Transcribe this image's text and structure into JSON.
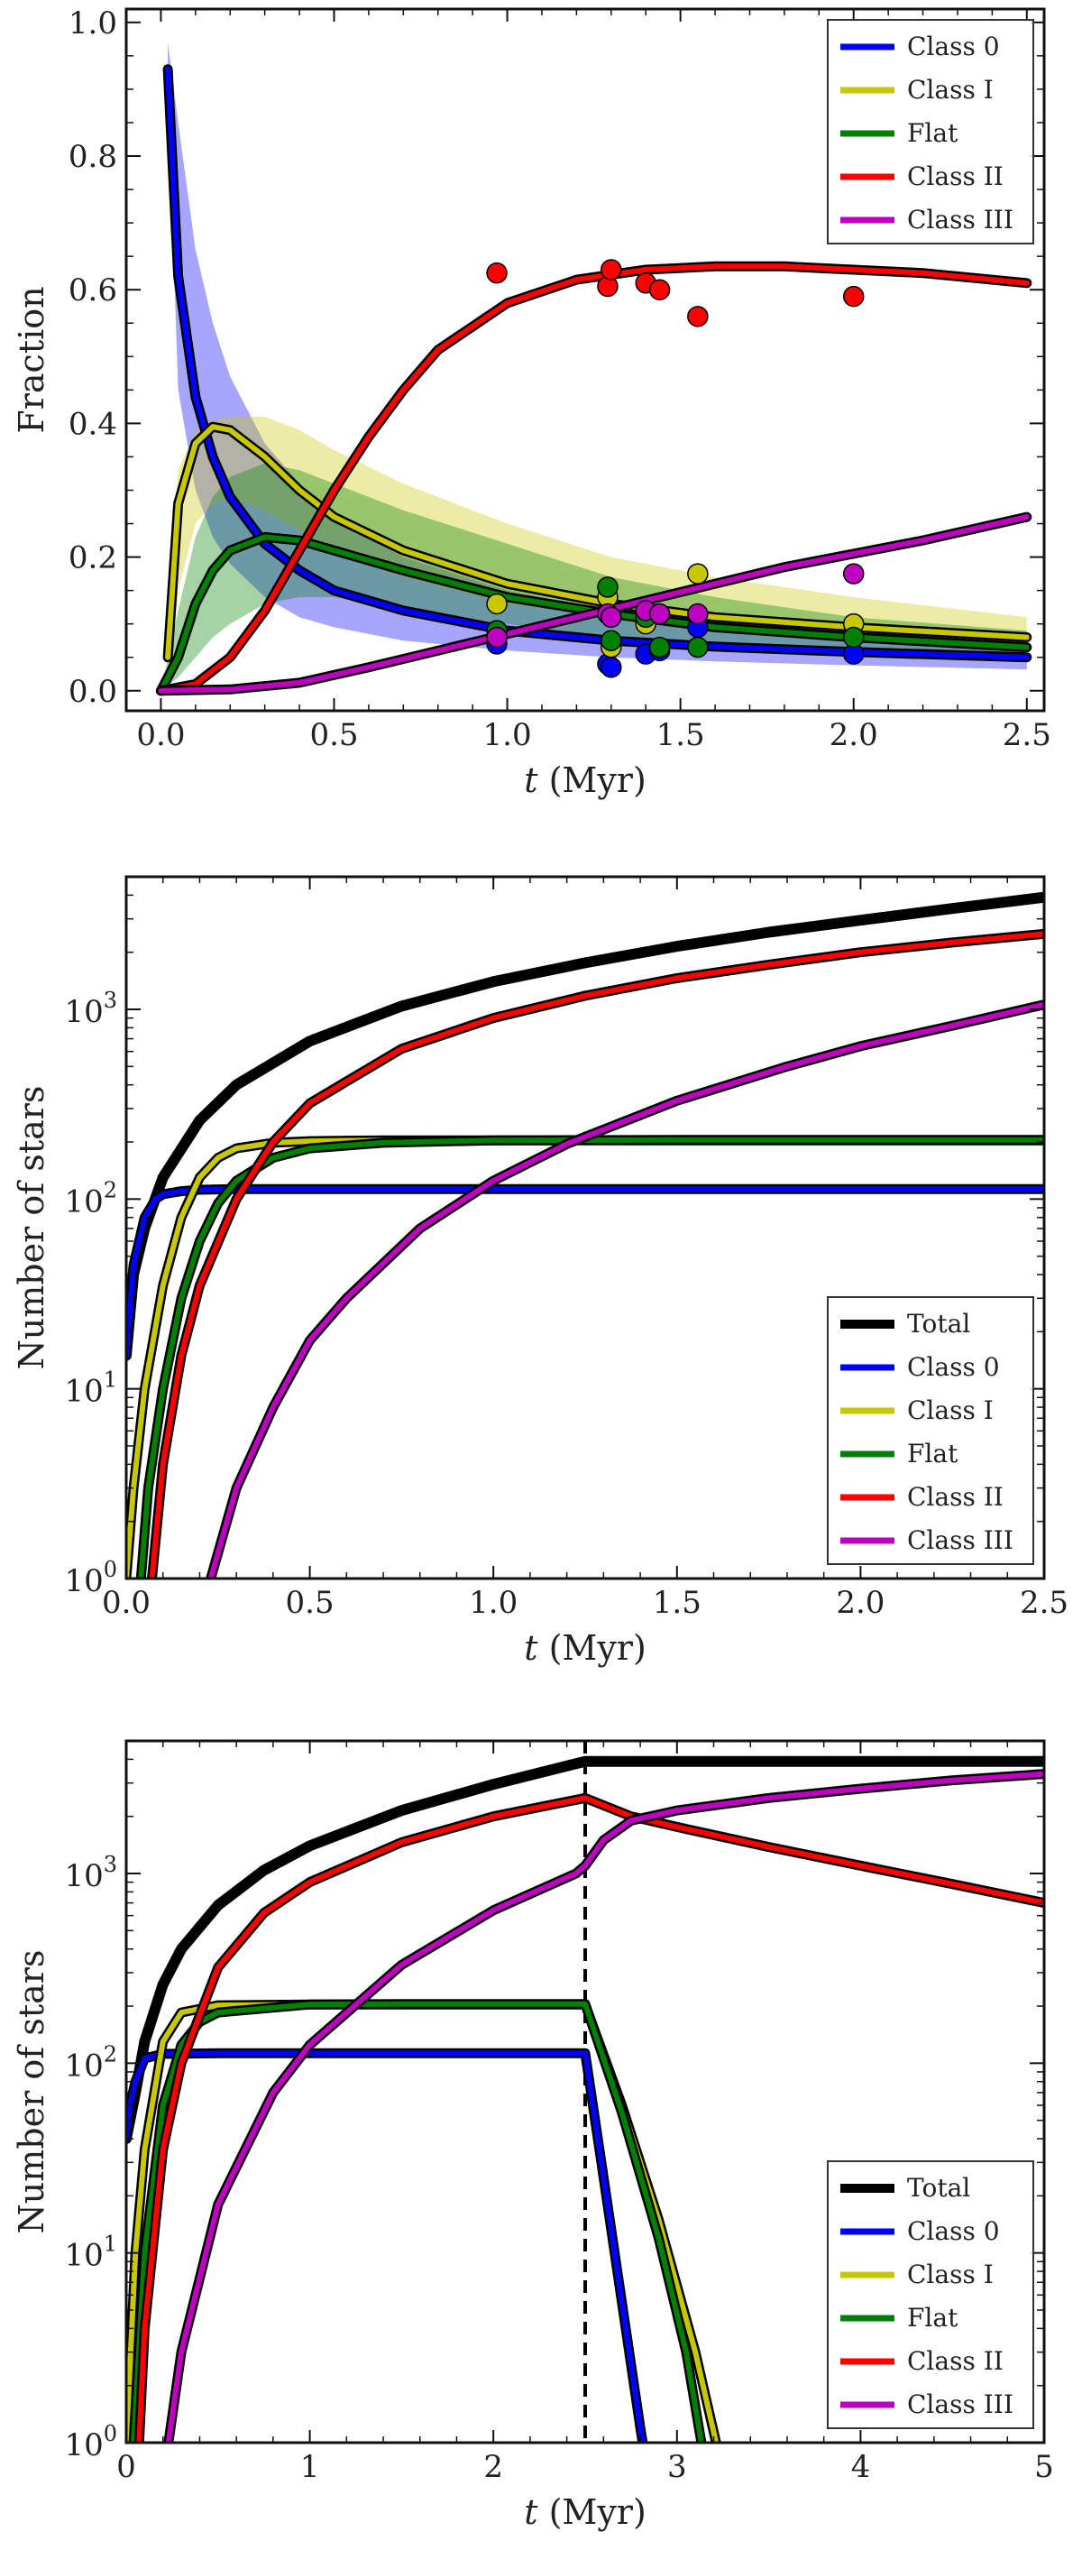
{
  "figure": {
    "panels": 3
  },
  "chart_data": [
    {
      "type": "line",
      "xlabel_italic": "t",
      "xlabel_rest": " (Myr)",
      "ylabel": "Fraction",
      "xlim": [
        -0.1,
        2.55
      ],
      "ylim": [
        -0.03,
        1.02
      ],
      "xticks": [
        0.0,
        0.5,
        1.0,
        1.5,
        2.0,
        2.5
      ],
      "xtick_labels": [
        "0.0",
        "0.5",
        "1.0",
        "1.5",
        "2.0",
        "2.5"
      ],
      "yticks": [
        0.0,
        0.2,
        0.4,
        0.6,
        0.8,
        1.0
      ],
      "ytick_labels": [
        "0.0",
        "0.2",
        "0.4",
        "0.6",
        "0.8",
        "1.0"
      ],
      "yscale": "linear",
      "legend_position": "top-right",
      "legend": [
        "Class 0",
        "Class I",
        "Flat",
        "Class II",
        "Class III"
      ],
      "series": [
        {
          "name": "Class 0",
          "color": "#0000ff",
          "x": [
            0.02,
            0.05,
            0.1,
            0.15,
            0.2,
            0.3,
            0.4,
            0.5,
            0.7,
            1.0,
            1.3,
            1.6,
            2.0,
            2.5
          ],
          "y": [
            0.93,
            0.62,
            0.44,
            0.35,
            0.29,
            0.22,
            0.18,
            0.15,
            0.12,
            0.09,
            0.075,
            0.066,
            0.058,
            0.05
          ],
          "band_upper": [
            0.97,
            0.85,
            0.66,
            0.55,
            0.47,
            0.37,
            0.31,
            0.26,
            0.2,
            0.15,
            0.12,
            0.1,
            0.085,
            0.07
          ],
          "band_lower": [
            0.9,
            0.45,
            0.3,
            0.23,
            0.19,
            0.14,
            0.11,
            0.095,
            0.075,
            0.06,
            0.05,
            0.044,
            0.038,
            0.032
          ]
        },
        {
          "name": "Class I",
          "color": "#c8c800",
          "x": [
            0.02,
            0.05,
            0.1,
            0.15,
            0.2,
            0.3,
            0.4,
            0.5,
            0.7,
            1.0,
            1.3,
            1.6,
            2.0,
            2.5
          ],
          "y": [
            0.05,
            0.28,
            0.37,
            0.395,
            0.39,
            0.35,
            0.3,
            0.26,
            0.21,
            0.16,
            0.13,
            0.11,
            0.095,
            0.08
          ],
          "band_upper": [
            0.1,
            0.33,
            0.39,
            0.405,
            0.41,
            0.41,
            0.39,
            0.36,
            0.31,
            0.25,
            0.2,
            0.17,
            0.14,
            0.11
          ],
          "band_lower": [
            0.0,
            0.15,
            0.25,
            0.28,
            0.29,
            0.27,
            0.24,
            0.21,
            0.17,
            0.13,
            0.11,
            0.09,
            0.075,
            0.06
          ]
        },
        {
          "name": "Flat",
          "color": "#008000",
          "x": [
            0.0,
            0.05,
            0.1,
            0.15,
            0.2,
            0.3,
            0.4,
            0.5,
            0.7,
            1.0,
            1.3,
            1.6,
            2.0,
            2.5
          ],
          "y": [
            0.0,
            0.05,
            0.13,
            0.18,
            0.21,
            0.23,
            0.225,
            0.21,
            0.18,
            0.14,
            0.115,
            0.095,
            0.08,
            0.065
          ],
          "band_upper": [
            0.0,
            0.12,
            0.23,
            0.29,
            0.32,
            0.34,
            0.33,
            0.31,
            0.27,
            0.22,
            0.17,
            0.14,
            0.11,
            0.09
          ],
          "band_lower": [
            0.0,
            0.02,
            0.05,
            0.08,
            0.1,
            0.13,
            0.14,
            0.14,
            0.12,
            0.1,
            0.08,
            0.065,
            0.055,
            0.045
          ]
        },
        {
          "name": "Class II",
          "color": "#ff0000",
          "x": [
            0.0,
            0.1,
            0.2,
            0.3,
            0.4,
            0.5,
            0.6,
            0.7,
            0.8,
            1.0,
            1.2,
            1.4,
            1.6,
            1.8,
            2.0,
            2.2,
            2.5
          ],
          "y": [
            0.0,
            0.01,
            0.05,
            0.12,
            0.21,
            0.3,
            0.38,
            0.45,
            0.51,
            0.58,
            0.615,
            0.63,
            0.635,
            0.635,
            0.63,
            0.625,
            0.61
          ]
        },
        {
          "name": "Class III",
          "color": "#c000c0",
          "x": [
            0.0,
            0.2,
            0.4,
            0.6,
            0.8,
            1.0,
            1.2,
            1.4,
            1.6,
            1.8,
            2.0,
            2.2,
            2.5
          ],
          "y": [
            0.0,
            0.002,
            0.012,
            0.035,
            0.06,
            0.085,
            0.11,
            0.135,
            0.16,
            0.185,
            0.205,
            0.225,
            0.26
          ]
        }
      ],
      "observations": [
        {
          "x": 0.97,
          "Class 0": 0.07,
          "Class I": 0.13,
          "Flat": 0.09,
          "Class II": 0.625,
          "Class III": 0.08
        },
        {
          "x": 1.29,
          "Class 0": 0.04,
          "Class I": 0.14,
          "Flat": 0.155,
          "Class II": 0.605,
          "Class III": 0.115
        },
        {
          "x": 1.3,
          "Class 0": 0.035,
          "Class I": 0.065,
          "Flat": 0.075,
          "Class II": 0.63,
          "Class III": 0.11
        },
        {
          "x": 1.4,
          "Class 0": 0.055,
          "Class I": 0.1,
          "Flat": 0.11,
          "Class II": 0.61,
          "Class III": 0.12
        },
        {
          "x": 1.44,
          "Class 0": 0.06,
          "Class I": 0.115,
          "Flat": 0.065,
          "Class II": 0.6,
          "Class III": 0.115
        },
        {
          "x": 1.55,
          "Class 0": 0.095,
          "Class I": 0.175,
          "Flat": 0.065,
          "Class II": 0.56,
          "Class III": 0.115
        },
        {
          "x": 2.0,
          "Class 0": 0.055,
          "Class I": 0.1,
          "Flat": 0.08,
          "Class II": 0.59,
          "Class III": 0.175
        }
      ]
    },
    {
      "type": "line",
      "xlabel_italic": "t",
      "xlabel_rest": " (Myr)",
      "ylabel": "Number of stars",
      "xlim": [
        0.0,
        2.5
      ],
      "ylim": [
        1,
        5000
      ],
      "yscale": "log",
      "xticks": [
        0.0,
        0.5,
        1.0,
        1.5,
        2.0,
        2.5
      ],
      "xtick_labels": [
        "0.0",
        "0.5",
        "1.0",
        "1.5",
        "2.0",
        "2.5"
      ],
      "yticks": [
        1,
        10,
        100,
        1000
      ],
      "ytick_base": "10",
      "ytick_exps": [
        "0",
        "1",
        "2",
        "3"
      ],
      "legend_position": "bottom-right",
      "legend": [
        "Total",
        "Class 0",
        "Class I",
        "Flat",
        "Class II",
        "Class III"
      ],
      "series": [
        {
          "name": "Total",
          "color": "#000000",
          "x": [
            0.0,
            0.02,
            0.05,
            0.1,
            0.2,
            0.3,
            0.5,
            0.75,
            1.0,
            1.25,
            1.5,
            1.75,
            2.0,
            2.25,
            2.5
          ],
          "y": [
            15,
            40,
            70,
            130,
            260,
            400,
            680,
            1040,
            1400,
            1760,
            2150,
            2550,
            2950,
            3400,
            3900
          ]
        },
        {
          "name": "Class 0",
          "color": "#0000ff",
          "x": [
            0.0,
            0.02,
            0.05,
            0.08,
            0.1,
            0.15,
            0.2,
            0.3,
            0.5,
            1.0,
            1.5,
            2.0,
            2.5
          ],
          "y": [
            15,
            45,
            80,
            100,
            106,
            110,
            112,
            113,
            113,
            113,
            113,
            113,
            113
          ]
        },
        {
          "name": "Class I",
          "color": "#c8c800",
          "x": [
            0.0,
            0.02,
            0.05,
            0.1,
            0.15,
            0.2,
            0.25,
            0.3,
            0.4,
            0.5,
            0.7,
            1.0,
            1.5,
            2.0,
            2.5
          ],
          "y": [
            1,
            3,
            10,
            35,
            80,
            130,
            165,
            185,
            198,
            202,
            204,
            204,
            204,
            204,
            204
          ]
        },
        {
          "name": "Flat",
          "color": "#008000",
          "x": [
            0.04,
            0.06,
            0.1,
            0.15,
            0.2,
            0.25,
            0.3,
            0.4,
            0.5,
            0.7,
            1.0,
            1.5,
            2.0,
            2.5
          ],
          "y": [
            1,
            3,
            10,
            30,
            60,
            95,
            125,
            165,
            185,
            198,
            204,
            205,
            205,
            205
          ]
        },
        {
          "name": "Class II",
          "color": "#ff0000",
          "x": [
            0.07,
            0.1,
            0.15,
            0.2,
            0.3,
            0.4,
            0.5,
            0.75,
            1.0,
            1.25,
            1.5,
            1.75,
            2.0,
            2.25,
            2.5
          ],
          "y": [
            1,
            4,
            15,
            35,
            100,
            200,
            320,
            620,
            900,
            1180,
            1460,
            1720,
            2000,
            2250,
            2500
          ]
        },
        {
          "name": "Class III",
          "color": "#c000c0",
          "x": [
            0.23,
            0.3,
            0.4,
            0.5,
            0.6,
            0.8,
            1.0,
            1.2,
            1.5,
            1.8,
            2.0,
            2.25,
            2.5
          ],
          "y": [
            1,
            3,
            8,
            18,
            30,
            70,
            125,
            195,
            330,
            500,
            640,
            820,
            1060
          ]
        }
      ]
    },
    {
      "type": "line",
      "xlabel_italic": "t",
      "xlabel_rest": " (Myr)",
      "ylabel": "Number of stars",
      "xlim": [
        0,
        5
      ],
      "ylim": [
        1,
        5000
      ],
      "yscale": "log",
      "xticks": [
        0,
        1,
        2,
        3,
        4,
        5
      ],
      "xtick_labels": [
        "0",
        "1",
        "2",
        "3",
        "4",
        "5"
      ],
      "yticks": [
        1,
        10,
        100,
        1000
      ],
      "ytick_base": "10",
      "ytick_exps": [
        "0",
        "1",
        "2",
        "3"
      ],
      "vline": 2.5,
      "legend_position": "bottom-right",
      "legend": [
        "Total",
        "Class 0",
        "Class I",
        "Flat",
        "Class II",
        "Class III"
      ],
      "series": [
        {
          "name": "Total",
          "color": "#000000",
          "x": [
            0.0,
            0.05,
            0.1,
            0.2,
            0.3,
            0.5,
            0.75,
            1.0,
            1.5,
            2.0,
            2.5,
            3.0,
            4.0,
            5.0
          ],
          "y": [
            40,
            70,
            130,
            260,
            400,
            680,
            1040,
            1400,
            2150,
            2950,
            3900,
            3900,
            3900,
            3900
          ]
        },
        {
          "name": "Class 0",
          "color": "#0000ff",
          "x": [
            0.0,
            0.02,
            0.05,
            0.1,
            0.2,
            0.5,
            1.0,
            1.5,
            2.0,
            2.5,
            2.6,
            2.7,
            2.8,
            2.85
          ],
          "y": [
            40,
            60,
            80,
            106,
            112,
            113,
            113,
            113,
            113,
            113,
            25,
            5.5,
            1.2,
            0.6
          ]
        },
        {
          "name": "Class I",
          "color": "#c8c800",
          "x": [
            0.0,
            0.05,
            0.1,
            0.2,
            0.3,
            0.5,
            1.0,
            1.5,
            2.0,
            2.5,
            2.7,
            2.9,
            3.1,
            3.25
          ],
          "y": [
            1,
            10,
            35,
            130,
            185,
            202,
            204,
            204,
            204,
            204,
            60,
            15,
            3,
            0.7
          ]
        },
        {
          "name": "Flat",
          "color": "#008000",
          "x": [
            0.04,
            0.1,
            0.2,
            0.3,
            0.4,
            0.5,
            1.0,
            1.5,
            2.0,
            2.5,
            2.7,
            2.9,
            3.05,
            3.15
          ],
          "y": [
            1,
            10,
            60,
            125,
            165,
            185,
            204,
            205,
            205,
            205,
            55,
            12,
            3,
            0.8
          ]
        },
        {
          "name": "Class II",
          "color": "#ff0000",
          "x": [
            0.07,
            0.1,
            0.2,
            0.3,
            0.5,
            0.75,
            1.0,
            1.5,
            2.0,
            2.5,
            2.75,
            3.0,
            3.5,
            4.0,
            4.5,
            5.0
          ],
          "y": [
            1,
            4,
            35,
            100,
            320,
            620,
            900,
            1460,
            2000,
            2500,
            2000,
            1760,
            1380,
            1100,
            880,
            700
          ]
        },
        {
          "name": "Class III",
          "color": "#c000c0",
          "x": [
            0.23,
            0.3,
            0.5,
            0.8,
            1.0,
            1.5,
            2.0,
            2.45,
            2.5,
            2.6,
            2.75,
            3.0,
            3.5,
            4.0,
            4.5,
            5.0
          ],
          "y": [
            1,
            3,
            18,
            70,
            125,
            330,
            640,
            1000,
            1100,
            1500,
            1900,
            2150,
            2500,
            2800,
            3100,
            3350
          ]
        }
      ]
    }
  ]
}
